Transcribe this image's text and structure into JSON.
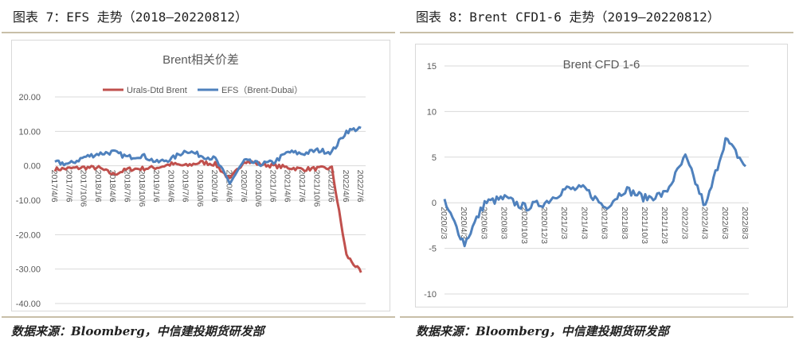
{
  "left_figure": {
    "caption": "图表 7：EFS 走势（2018—20220812）",
    "source": "数据来源：Bloomberg，中信建投期货研发部"
  },
  "right_figure": {
    "caption": "图表 8：Brent CFD1-6 走势（2019—20220812）",
    "source": "数据来源：Bloomberg，中信建投期货研发部"
  },
  "colors": {
    "urals": "#c0504d",
    "efs": "#4f81bd",
    "grid": "#d9d9d9",
    "rule": "#c8bfa8"
  },
  "chart_data": [
    {
      "type": "line",
      "title": "Brent相关价差",
      "xlabel": "",
      "ylabel": "",
      "ylim": [
        -40,
        20
      ],
      "yticks": [
        "20.00",
        "10.00",
        "0.00",
        "-10.00",
        "-20.00",
        "-30.00",
        "-40.00"
      ],
      "grid": true,
      "legend_position": "top",
      "x": [
        "2017/4/6",
        "2017/7/6",
        "2017/10/6",
        "2018/1/6",
        "2018/4/6",
        "2018/7/6",
        "2018/10/6",
        "2019/1/6",
        "2019/4/6",
        "2019/7/6",
        "2019/10/6",
        "2020/1/6",
        "2020/4/6",
        "2020/7/6",
        "2020/10/6",
        "2021/1/6",
        "2021/4/6",
        "2021/7/6",
        "2021/10/6",
        "2022/1/6",
        "2022/4/6",
        "2022/7/6"
      ],
      "series": [
        {
          "name": "Urals-Dtd Brent",
          "values": [
            -1.0,
            -0.8,
            -0.5,
            -0.6,
            -2.5,
            -1.0,
            -0.8,
            -0.5,
            0.5,
            0.0,
            1.0,
            0.5,
            -4.0,
            1.5,
            0.5,
            0.0,
            -0.5,
            -1.0,
            -0.8,
            -0.7,
            -26.0,
            -31.0
          ]
        },
        {
          "name": "EFS（Brent-Dubai）",
          "values": [
            1.0,
            0.5,
            2.5,
            3.5,
            4.0,
            2.5,
            3.0,
            1.0,
            2.0,
            4.5,
            3.0,
            2.0,
            -5.0,
            1.5,
            0.5,
            1.0,
            4.0,
            3.5,
            4.5,
            4.0,
            10.0,
            11.0
          ]
        }
      ]
    },
    {
      "type": "line",
      "title": "Brent CFD 1-6",
      "xlabel": "",
      "ylabel": "",
      "ylim": [
        -10,
        15
      ],
      "yticks": [
        "15",
        "10",
        "5",
        "0",
        "-5",
        "-10"
      ],
      "grid": true,
      "x": [
        "2020/2/3",
        "2020/4/3",
        "2020/6/3",
        "2020/8/3",
        "2020/10/3",
        "2020/12/3",
        "2021/2/3",
        "2021/4/3",
        "2021/6/3",
        "2021/8/3",
        "2021/10/3",
        "2021/12/3",
        "2022/2/3",
        "2022/4/3",
        "2022/6/3",
        "2022/8/3"
      ],
      "series": [
        {
          "name": "Brent CFD 1-6",
          "values": [
            0.0,
            -4.5,
            0.0,
            0.5,
            -0.5,
            0.0,
            1.5,
            1.5,
            -0.5,
            1.5,
            0.5,
            1.0,
            5.0,
            -0.5,
            7.0,
            4.0
          ]
        }
      ]
    }
  ]
}
